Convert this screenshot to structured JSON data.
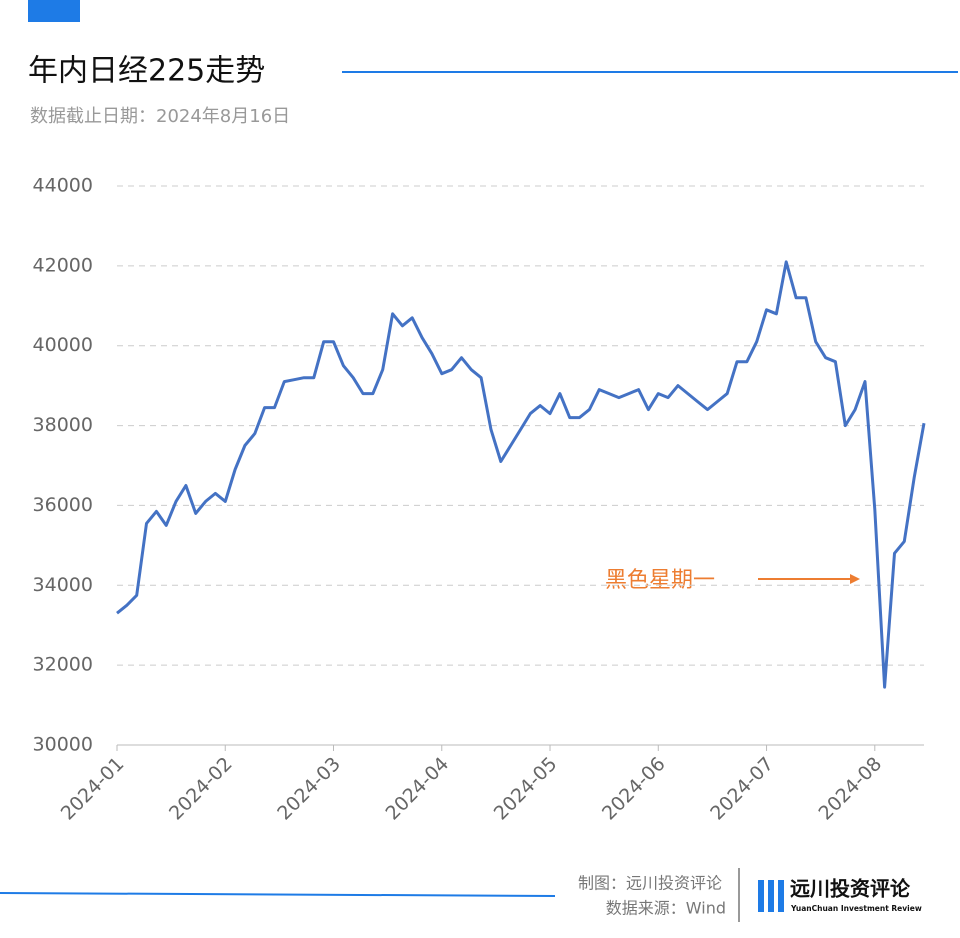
{
  "chart_data": {
    "type": "line",
    "title": "年内日经225走势",
    "subtitle": "数据截止日期：2024年8月16日",
    "annotation": "黑色星期一",
    "categories": [
      "2024-01",
      null,
      null,
      null,
      null,
      null,
      null,
      null,
      null,
      null,
      null,
      "2024-02",
      null,
      null,
      null,
      null,
      null,
      null,
      null,
      null,
      null,
      null,
      "2024-03",
      null,
      null,
      null,
      null,
      null,
      null,
      null,
      null,
      null,
      null,
      "2024-04",
      null,
      null,
      null,
      null,
      null,
      null,
      null,
      null,
      null,
      null,
      "2024-05",
      null,
      null,
      null,
      null,
      null,
      null,
      null,
      null,
      null,
      null,
      "2024-06",
      null,
      null,
      null,
      null,
      null,
      null,
      null,
      null,
      null,
      null,
      "2024-07",
      null,
      null,
      null,
      null,
      null,
      null,
      null,
      null,
      null,
      null,
      "2024-08",
      null,
      null,
      null,
      null,
      null
    ],
    "series": [
      {
        "name": "日经225",
        "color": "#4472c4",
        "values": [
          33300,
          33500,
          33750,
          35550,
          35850,
          35500,
          36100,
          36500,
          35800,
          36100,
          36300,
          36100,
          36900,
          37500,
          37800,
          38450,
          38450,
          39100,
          39150,
          39200,
          39200,
          40100,
          40100,
          39500,
          39200,
          38800,
          38800,
          39400,
          40800,
          40500,
          40700,
          40200,
          39800,
          39300,
          39400,
          39700,
          39400,
          39200,
          37900,
          37100,
          37500,
          37900,
          38300,
          38500,
          38300,
          38800,
          38200,
          38200,
          38400,
          38900,
          38800,
          38700,
          38800,
          38900,
          38400,
          38800,
          38700,
          39000,
          38800,
          38600,
          38400,
          38600,
          38800,
          39600,
          39600,
          40100,
          40900,
          40800,
          42100,
          41200,
          41200,
          40100,
          39700,
          39600,
          38000,
          38400,
          39100,
          35900,
          31450,
          34800,
          35100,
          36700,
          38060
        ]
      }
    ],
    "ylim": [
      30000,
      44000
    ],
    "yticks": [
      30000,
      32000,
      34000,
      36000,
      38000,
      40000,
      42000,
      44000
    ],
    "grid": true
  },
  "footer": {
    "credit": "制图：远川投资评论",
    "source": "数据来源：Wind"
  },
  "brand": {
    "name": "远川投资评论",
    "tagline": "YuanChuan Investment Review"
  }
}
